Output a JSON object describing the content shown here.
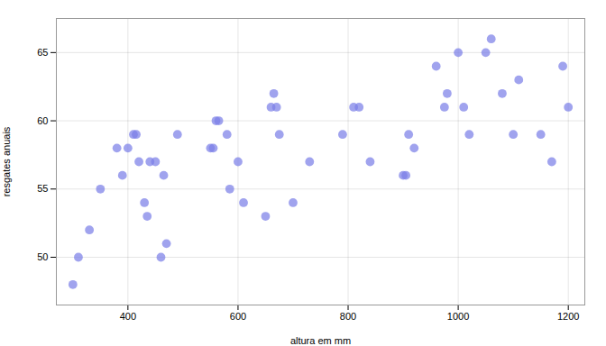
{
  "chart_data": {
    "type": "scatter",
    "x": [
      300,
      310,
      330,
      350,
      380,
      390,
      400,
      410,
      415,
      420,
      430,
      435,
      440,
      450,
      460,
      465,
      470,
      490,
      550,
      555,
      560,
      565,
      580,
      585,
      600,
      610,
      650,
      660,
      665,
      670,
      675,
      700,
      730,
      790,
      810,
      820,
      840,
      900,
      905,
      910,
      920,
      960,
      975,
      980,
      1000,
      1010,
      1020,
      1050,
      1060,
      1080,
      1100,
      1110,
      1150,
      1170,
      1190,
      1200
    ],
    "values": [
      48,
      50,
      52,
      55,
      58,
      56,
      58,
      59,
      59,
      57,
      54,
      53,
      57,
      57,
      50,
      56,
      51,
      59,
      58,
      58,
      60,
      60,
      59,
      55,
      57,
      54,
      53,
      61,
      62,
      61,
      59,
      54,
      57,
      59,
      61,
      61,
      57,
      56,
      56,
      59,
      58,
      64,
      61,
      62,
      65,
      61,
      59,
      65,
      66,
      62,
      59,
      63,
      59,
      57,
      64,
      61
    ],
    "color": "#7b7fe8",
    "xlabel": "altura em mm",
    "ylabel": "resgates anuais",
    "xlim": [
      270,
      1230
    ],
    "ylim": [
      46.5,
      67.5
    ],
    "xticks": [
      400,
      600,
      800,
      1000,
      1200
    ],
    "yticks": [
      50,
      55,
      60,
      65
    ],
    "grid": true
  }
}
